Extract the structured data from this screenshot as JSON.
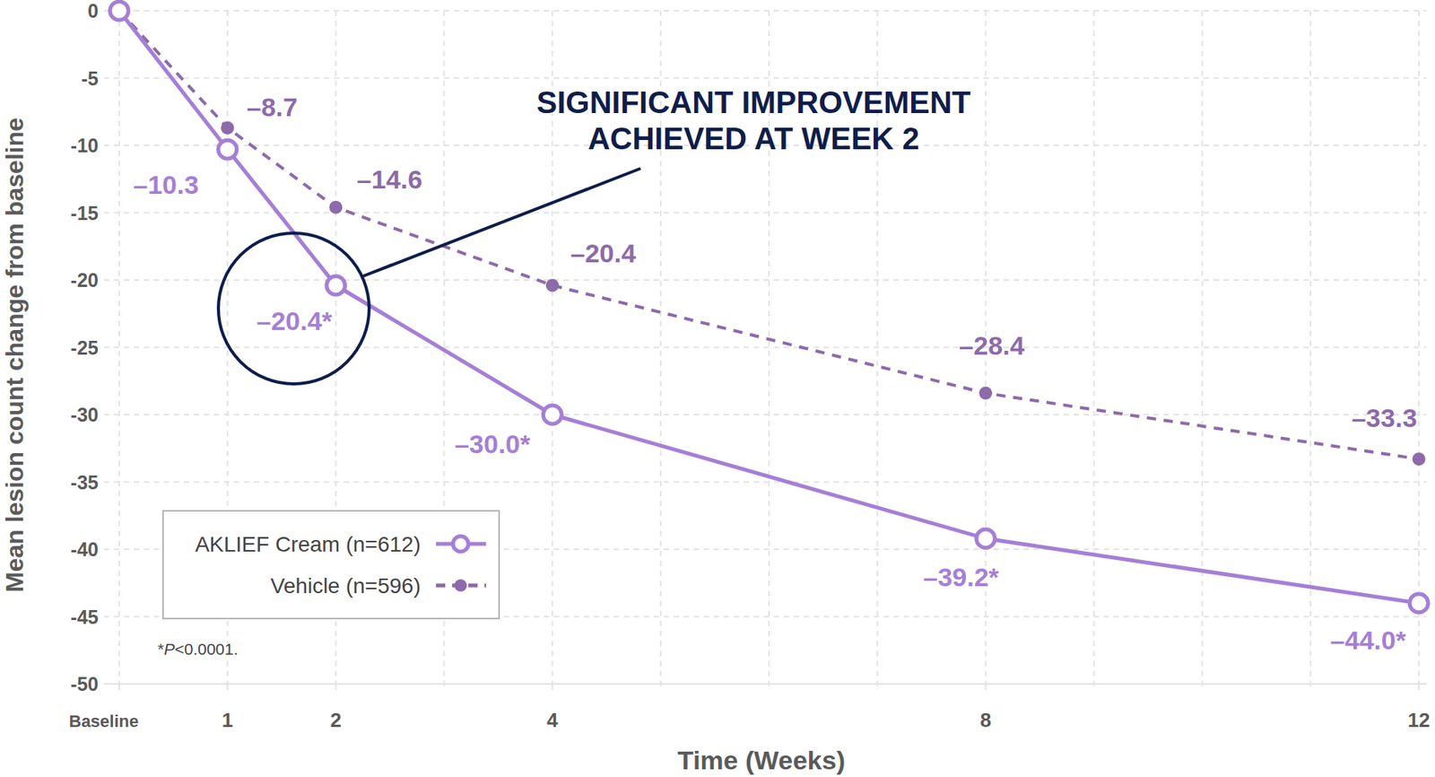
{
  "chart_data": {
    "type": "line",
    "x_label": "Time (Weeks)",
    "y_label": "Mean lesion count change from baseline",
    "x": [
      0,
      1,
      2,
      4,
      8,
      12
    ],
    "xlim": [
      0,
      12
    ],
    "ylim": [
      -50,
      0
    ],
    "xticks": [
      {
        "value": 0,
        "label": "Baseline"
      },
      1,
      2,
      4,
      8,
      12
    ],
    "yticks": [
      0,
      -5,
      -10,
      -15,
      -20,
      -25,
      -30,
      -35,
      -40,
      -45,
      -50
    ],
    "grid": true,
    "legend": "lower left",
    "data_labels": true,
    "series": [
      {
        "name": "AKLIEF Cream (n=612)",
        "color": "#a57fd6",
        "marker": "open-circle",
        "line_style": "solid",
        "values": [
          0,
          -10.3,
          -20.4,
          -30.0,
          -39.2,
          -44.0
        ],
        "value_labels": [
          null,
          "–10.3",
          "–20.4*",
          "–30.0*",
          "–39.2*",
          "–44.0*"
        ]
      },
      {
        "name": "Vehicle (n=596)",
        "color": "#8d6aaa",
        "marker": "dot",
        "line_style": "dashed",
        "values": [
          0,
          -8.7,
          -14.6,
          -20.4,
          -28.4,
          -33.3
        ],
        "value_labels": [
          null,
          "–8.7",
          "–14.6",
          "–20.4",
          "–28.4",
          "–33.3"
        ]
      }
    ],
    "annotation": [
      "SIGNIFICANT IMPROVEMENT",
      "ACHIEVED AT WEEK 2"
    ],
    "footnote": "*P<0.0001."
  }
}
